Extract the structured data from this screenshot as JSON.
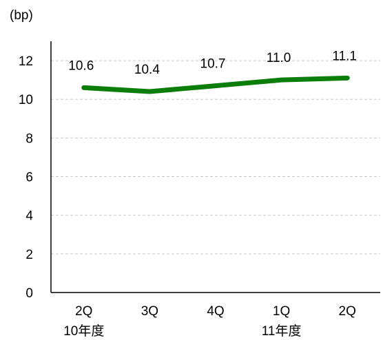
{
  "chart_data": {
    "type": "line",
    "unit_label": "(bp)",
    "categories": [
      "2Q",
      "3Q",
      "4Q",
      "1Q",
      "2Q"
    ],
    "category_groups": [
      {
        "label": "10年度",
        "category_index": 0
      },
      {
        "label": "11年度",
        "category_index": 3
      }
    ],
    "series": [
      {
        "values": [
          10.6,
          10.4,
          10.7,
          11.0,
          11.1
        ],
        "color": "#0a7d0a"
      }
    ],
    "data_labels": [
      "10.6",
      "10.4",
      "10.7",
      "11.0",
      "11.1"
    ],
    "ylim": [
      0,
      13
    ],
    "yticks": [
      0,
      2,
      4,
      6,
      8,
      10,
      12
    ],
    "grid": true,
    "legend": "none"
  }
}
